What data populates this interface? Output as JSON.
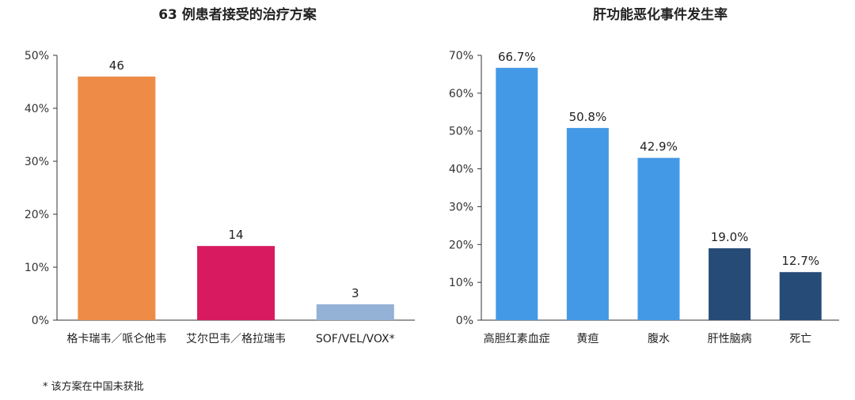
{
  "footnote": "* 该方案在中国未获批",
  "chart_data": [
    {
      "type": "bar",
      "title": "63 例患者接受的治疗方案",
      "categories": [
        "格卡瑞韦／哌仑他韦",
        "艾尔巴韦／格拉瑞韦",
        "SOF/VEL/VOX*"
      ],
      "values": [
        46,
        14,
        3
      ],
      "value_labels": [
        "46",
        "14",
        "3"
      ],
      "colors": [
        "#EE8C47",
        "#D81B60",
        "#94B1D6"
      ],
      "ylim": [
        0,
        50
      ],
      "yticks": [
        0,
        10,
        20,
        30,
        40,
        50
      ],
      "ytick_labels": [
        "0%",
        "10%",
        "20%",
        "30%",
        "40%",
        "50%"
      ],
      "xlabel": "",
      "ylabel": "",
      "grid": false
    },
    {
      "type": "bar",
      "title": "肝功能恶化事件发生率",
      "categories": [
        "高胆红素血症",
        "黄疸",
        "腹水",
        "肝性脑病",
        "死亡"
      ],
      "values": [
        66.7,
        50.8,
        42.9,
        19.0,
        12.7
      ],
      "value_labels": [
        "66.7%",
        "50.8%",
        "42.9%",
        "19.0%",
        "12.7%"
      ],
      "colors": [
        "#4499E6",
        "#4499E6",
        "#4499E6",
        "#264B77",
        "#264B77"
      ],
      "ylim": [
        0,
        70
      ],
      "yticks": [
        0,
        10,
        20,
        30,
        40,
        50,
        60,
        70
      ],
      "ytick_labels": [
        "0%",
        "10%",
        "20%",
        "30%",
        "40%",
        "50%",
        "60%",
        "70%"
      ],
      "xlabel": "",
      "ylabel": "",
      "grid": false
    }
  ]
}
